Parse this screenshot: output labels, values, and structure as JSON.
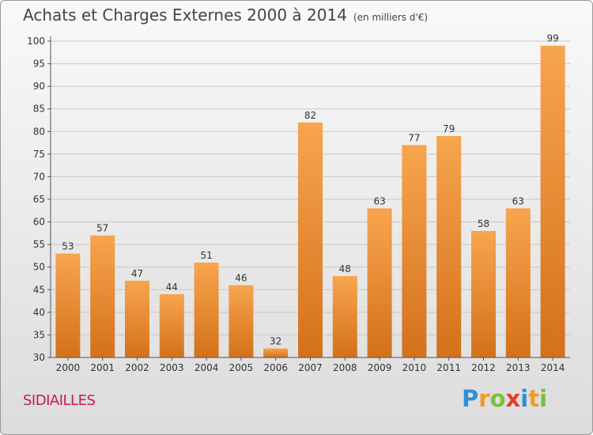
{
  "page": {
    "title": "Achats et Charges Externes 2000 à 2014",
    "subtitle": "(en milliers d'€)",
    "commune": "SIDIAILLES"
  },
  "brand": {
    "letters": [
      {
        "ch": "P",
        "color": "#2f8fd6"
      },
      {
        "ch": "r",
        "color": "#f29a26"
      },
      {
        "ch": "o",
        "color": "#7bbf3a"
      },
      {
        "ch": "x",
        "color": "#e63b2e"
      },
      {
        "ch": "i",
        "color": "#2f8fd6"
      },
      {
        "ch": "t",
        "color": "#f29a26"
      },
      {
        "ch": "i",
        "color": "#7bbf3a"
      }
    ]
  },
  "chart_data": {
    "type": "bar",
    "categories": [
      "2000",
      "2001",
      "2002",
      "2003",
      "2004",
      "2005",
      "2006",
      "2007",
      "2008",
      "2009",
      "2010",
      "2011",
      "2012",
      "2013",
      "2014"
    ],
    "values": [
      53,
      57,
      47,
      44,
      51,
      46,
      32,
      82,
      48,
      63,
      77,
      79,
      58,
      63,
      99
    ],
    "ylim": [
      30,
      100
    ],
    "yticks": [
      30,
      35,
      40,
      45,
      50,
      55,
      60,
      65,
      70,
      75,
      80,
      85,
      90,
      95,
      100
    ],
    "grid": true,
    "bar_color": "#f19a3f"
  }
}
